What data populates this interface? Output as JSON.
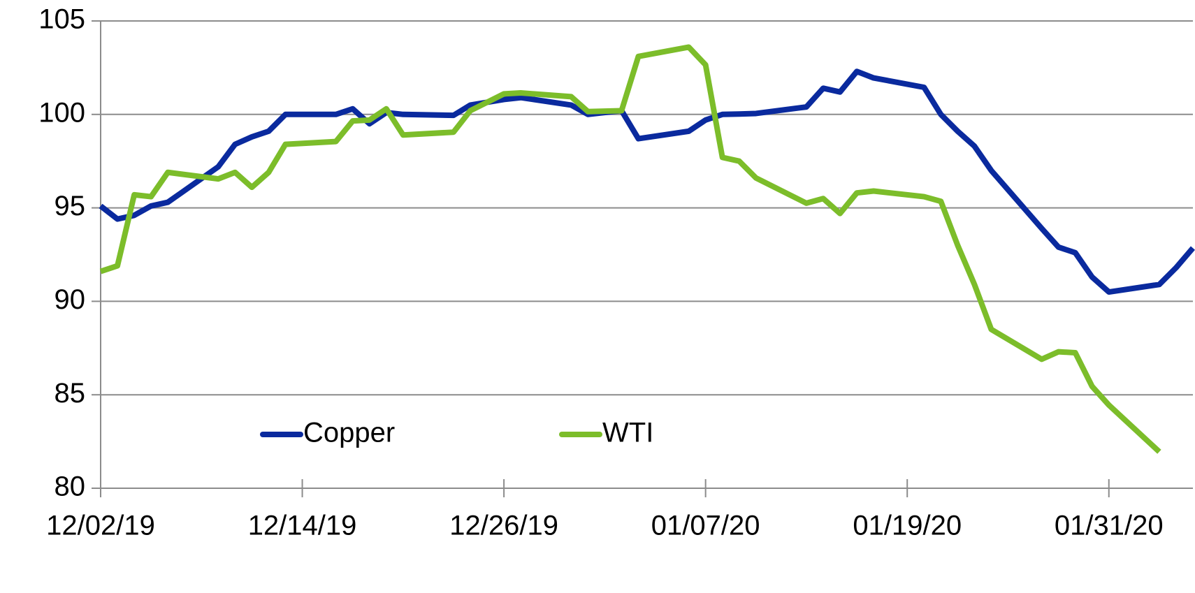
{
  "chart_data": {
    "type": "line",
    "x": [
      "2019-12-02",
      "2019-12-03",
      "2019-12-04",
      "2019-12-05",
      "2019-12-06",
      "2019-12-09",
      "2019-12-10",
      "2019-12-11",
      "2019-12-12",
      "2019-12-13",
      "2019-12-16",
      "2019-12-17",
      "2019-12-18",
      "2019-12-19",
      "2019-12-20",
      "2019-12-23",
      "2019-12-24",
      "2019-12-26",
      "2019-12-27",
      "2019-12-30",
      "2019-12-31",
      "2020-01-02",
      "2020-01-03",
      "2020-01-06",
      "2020-01-07",
      "2020-01-08",
      "2020-01-09",
      "2020-01-10",
      "2020-01-13",
      "2020-01-14",
      "2020-01-15",
      "2020-01-16",
      "2020-01-17",
      "2020-01-20",
      "2020-01-21",
      "2020-01-22",
      "2020-01-23",
      "2020-01-24",
      "2020-01-27",
      "2020-01-28",
      "2020-01-29",
      "2020-01-30",
      "2020-01-31",
      "2020-02-03",
      "2020-02-04",
      "2020-02-05"
    ],
    "series": [
      {
        "name": "Copper",
        "color": "#0a2a9e",
        "values": [
          95.1,
          94.4,
          94.6,
          95.1,
          95.3,
          97.2,
          98.4,
          98.8,
          99.1,
          100.0,
          100.0,
          100.3,
          99.5,
          100.1,
          100.0,
          99.95,
          100.5,
          100.8,
          100.9,
          100.5,
          100.0,
          100.2,
          98.7,
          99.1,
          99.7,
          100.0,
          100.02,
          100.05,
          100.4,
          101.4,
          101.2,
          102.3,
          101.95,
          101.45,
          100.0,
          99.1,
          98.3,
          97.0,
          93.9,
          92.9,
          92.6,
          91.3,
          90.5,
          90.9,
          91.8,
          92.85
        ]
      },
      {
        "name": "WTI",
        "color": "#7cbd2a",
        "values": [
          91.6,
          91.9,
          95.7,
          95.6,
          96.9,
          96.55,
          96.9,
          96.1,
          96.9,
          98.4,
          98.55,
          99.65,
          99.7,
          100.3,
          98.9,
          99.05,
          100.2,
          101.1,
          101.15,
          100.95,
          100.15,
          100.2,
          103.1,
          103.6,
          102.65,
          97.7,
          97.5,
          96.6,
          95.25,
          95.5,
          94.7,
          95.8,
          95.9,
          95.6,
          95.35,
          93.0,
          90.9,
          88.5,
          86.9,
          87.3,
          87.25,
          85.45,
          84.45,
          81.95,
          null,
          null
        ]
      }
    ],
    "xlim": [
      "2019-12-02",
      "2020-02-05"
    ],
    "xticks": [
      {
        "value": "2019-12-02",
        "label": "12/02/19"
      },
      {
        "value": "2019-12-14",
        "label": "12/14/19"
      },
      {
        "value": "2019-12-26",
        "label": "12/26/19"
      },
      {
        "value": "2020-01-07",
        "label": "01/07/20"
      },
      {
        "value": "2020-01-19",
        "label": "01/19/20"
      },
      {
        "value": "2020-01-31",
        "label": "01/31/20"
      }
    ],
    "ylim": [
      80,
      105
    ],
    "yticks": [
      80,
      85,
      90,
      95,
      100,
      105
    ],
    "grid": true
  }
}
